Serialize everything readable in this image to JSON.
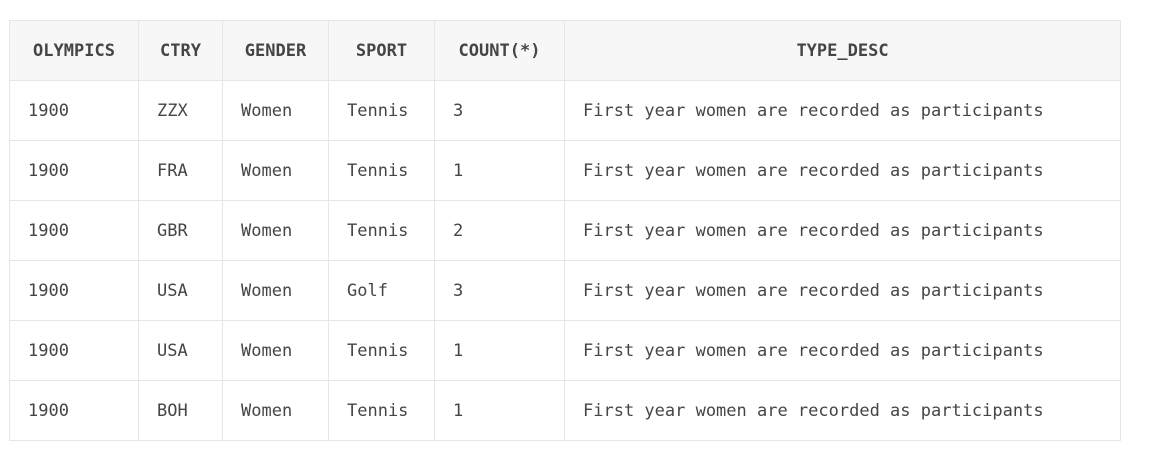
{
  "table": {
    "columns": [
      "OLYMPICS",
      "CTRY",
      "GENDER",
      "SPORT",
      "COUNT(*)",
      "TYPE_DESC"
    ],
    "rows": [
      [
        "1900",
        "ZZX",
        "Women",
        "Tennis",
        "3",
        "First year women are recorded as participants"
      ],
      [
        "1900",
        "FRA",
        "Women",
        "Tennis",
        "1",
        "First year women are recorded as participants"
      ],
      [
        "1900",
        "GBR",
        "Women",
        "Tennis",
        "2",
        "First year women are recorded as participants"
      ],
      [
        "1900",
        "USA",
        "Women",
        "Golf",
        "3",
        "First year women are recorded as participants"
      ],
      [
        "1900",
        "USA",
        "Women",
        "Tennis",
        "1",
        "First year women are recorded as participants"
      ],
      [
        "1900",
        "BOH",
        "Women",
        "Tennis",
        "1",
        "First year women are recorded as participants"
      ]
    ]
  },
  "colors": {
    "header_bg": "#f7f7f7",
    "border": "#e6e6e6",
    "text": "#454545"
  }
}
